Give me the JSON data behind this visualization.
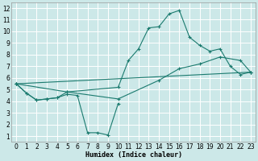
{
  "xlabel": "Humidex (Indice chaleur)",
  "bg_color": "#cce8e8",
  "grid_color": "#ffffff",
  "line_color": "#1a7a6e",
  "xlim": [
    -0.5,
    23.5
  ],
  "ylim": [
    0.5,
    12.5
  ],
  "xticks": [
    0,
    1,
    2,
    3,
    4,
    5,
    6,
    7,
    8,
    9,
    10,
    11,
    12,
    13,
    14,
    15,
    16,
    17,
    18,
    19,
    20,
    21,
    22,
    23
  ],
  "yticks": [
    1,
    2,
    3,
    4,
    5,
    6,
    7,
    8,
    9,
    10,
    11,
    12
  ],
  "c1x": [
    0,
    1,
    2,
    3,
    4,
    5,
    6,
    7,
    8,
    9,
    10
  ],
  "c1y": [
    5.5,
    4.7,
    4.1,
    4.2,
    4.3,
    4.6,
    4.5,
    1.3,
    1.3,
    1.1,
    3.8
  ],
  "c2x": [
    0,
    1,
    2,
    3,
    4,
    5,
    10,
    11,
    12,
    13,
    14,
    15,
    16,
    17,
    18,
    19,
    20,
    21,
    22,
    23
  ],
  "c2y": [
    5.5,
    4.7,
    4.1,
    4.2,
    4.3,
    4.8,
    5.2,
    7.5,
    8.5,
    10.3,
    10.4,
    11.5,
    11.8,
    9.5,
    8.8,
    8.3,
    8.5,
    7.0,
    6.3,
    6.5
  ],
  "c3x": [
    0,
    5,
    10,
    14,
    16,
    18,
    20,
    22,
    23
  ],
  "c3y": [
    5.5,
    4.8,
    4.2,
    5.8,
    6.8,
    7.2,
    7.8,
    7.5,
    6.5
  ],
  "c4x": [
    0,
    23
  ],
  "c4y": [
    5.5,
    6.5
  ]
}
